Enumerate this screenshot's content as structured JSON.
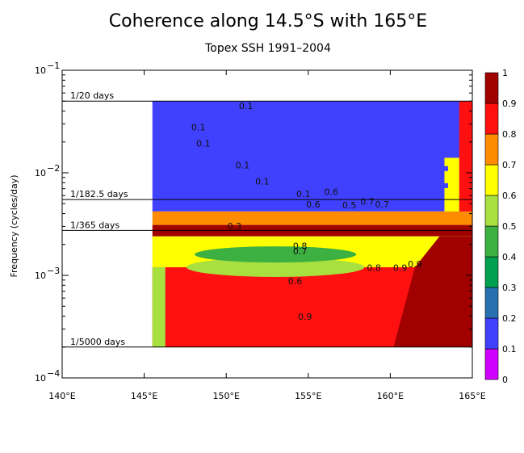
{
  "chart_data": {
    "type": "heatmap",
    "title": "Coherence along 14.5°S with 165°E",
    "subtitle": "Topex SSH 1991–2004",
    "ylabel": "Frequency (cycles/day)",
    "xlabel": "",
    "x_ticks": [
      "140°E",
      "145°E",
      "150°E",
      "155°E",
      "160°E",
      "165°E"
    ],
    "x_values": [
      140,
      145,
      150,
      155,
      160,
      165
    ],
    "y_scale": "log",
    "ylim": [
      0.0001,
      0.1
    ],
    "xlim": [
      140,
      165
    ],
    "y_ticks": [
      {
        "base": "10",
        "exp": "−1",
        "value": 0.1
      },
      {
        "base": "10",
        "exp": "−2",
        "value": 0.01
      },
      {
        "base": "10",
        "exp": "−3",
        "value": 0.001
      },
      {
        "base": "10",
        "exp": "−4",
        "value": 0.0001
      }
    ],
    "period_lines": [
      {
        "label": "1/20 days",
        "frequency": 0.05
      },
      {
        "label": "1/182.5 days",
        "frequency": 0.005479
      },
      {
        "label": "1/365 days",
        "frequency": 0.00274
      },
      {
        "label": "1/5000 days",
        "frequency": 0.0002
      }
    ],
    "colorbar": {
      "levels": [
        "0",
        "0.1",
        "0.2",
        "0.3",
        "0.4",
        "0.5",
        "0.6",
        "0.7",
        "0.8",
        "0.9",
        "1"
      ],
      "colors": [
        "#d000ff",
        "#4040ff",
        "#2870b0",
        "#00a050",
        "#3cb040",
        "#a8e040",
        "#ffff00",
        "#ff8c00",
        "#ff1010",
        "#a00000"
      ]
    },
    "contour_labels": [
      "0.1",
      "0.1",
      "0.1",
      "0.1",
      "0.1",
      "0.1",
      "0.7",
      "0.6",
      "0.5",
      "0.7",
      "0.6",
      "0.8",
      "0.7",
      "0.8",
      "0.9",
      "0.9",
      "0.6",
      "0.9",
      "0.3"
    ],
    "data_x_range": [
      145.5,
      165
    ],
    "bands": [
      {
        "f_top": 0.05,
        "f_bot": 0.0042,
        "value": 0.1
      },
      {
        "f_top": 0.0042,
        "f_bot": 0.0031,
        "value": 0.7
      },
      {
        "f_top": 0.0031,
        "f_bot": 0.0024,
        "value": 0.9
      },
      {
        "f_top": 0.0024,
        "f_bot": 0.0012,
        "value": 0.6
      },
      {
        "f_top": 0.0012,
        "f_bot": 0.0002,
        "value": 0.8
      }
    ]
  }
}
